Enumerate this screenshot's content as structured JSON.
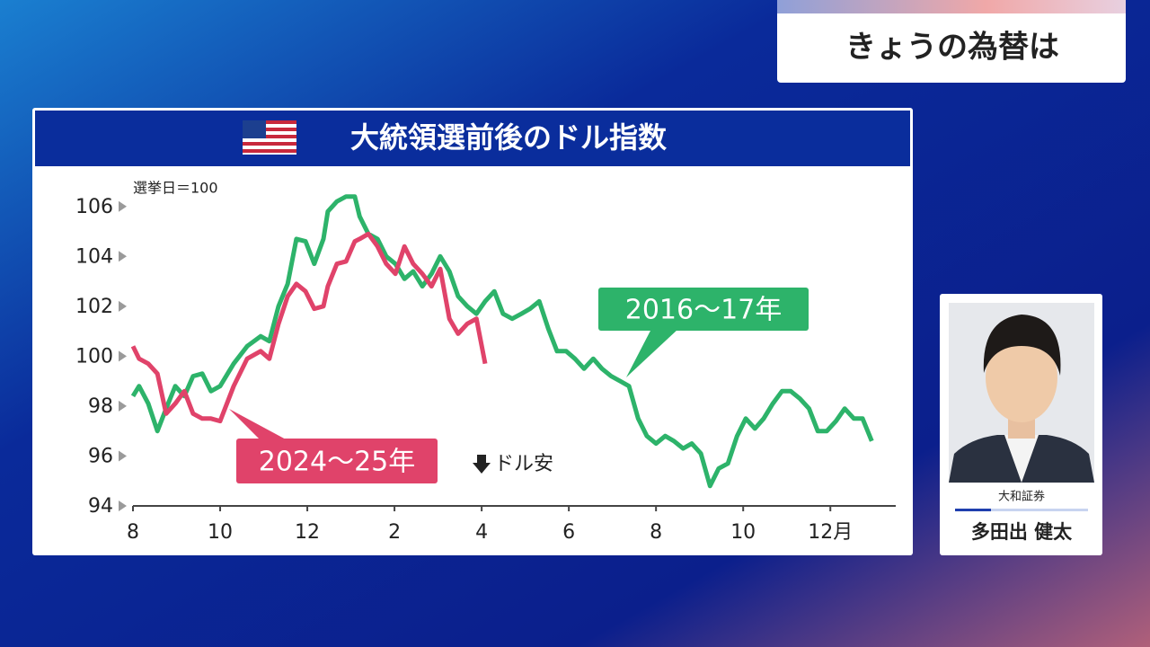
{
  "header": {
    "title": "きょうの為替は"
  },
  "chart_data": {
    "type": "line",
    "title": "大統領選前後のドル指数",
    "y_label": "選挙日＝100",
    "annotation": "ドル安",
    "x": [
      0,
      0.14,
      0.35,
      0.56,
      0.76,
      0.97,
      1.18,
      1.38,
      1.59,
      1.79,
      2.0,
      2.31,
      2.62,
      2.93,
      3.13,
      3.34,
      3.55,
      3.75,
      3.96,
      4.16,
      4.37,
      4.47,
      4.68,
      4.89,
      5.09,
      5.2,
      5.4,
      5.61,
      5.81,
      6.02,
      6.23,
      6.43,
      6.64,
      6.85,
      7.05,
      7.26,
      7.46,
      7.67,
      7.88,
      8.08,
      8.29,
      8.49,
      8.7,
      8.91,
      9.11,
      9.32,
      9.53,
      9.73,
      9.94,
      10.14,
      10.35,
      10.56,
      10.76,
      10.97,
      11.18,
      11.38,
      11.59,
      11.79,
      12.0,
      12.21,
      12.41,
      12.62,
      12.82,
      13.03,
      13.24,
      13.44,
      13.65,
      13.86,
      14.06,
      14.27,
      14.47,
      14.68,
      14.89,
      15.09,
      15.3,
      15.51,
      15.71,
      15.92,
      16.13,
      16.33,
      16.54,
      16.74,
      16.95
    ],
    "series": [
      {
        "name": "2016〜17年",
        "color": "#2db36a",
        "values": [
          98.4,
          98.8,
          98.1,
          97.0,
          97.9,
          98.8,
          98.4,
          99.2,
          99.3,
          98.6,
          98.8,
          99.7,
          100.4,
          100.8,
          100.6,
          102.0,
          102.9,
          104.7,
          104.6,
          103.7,
          104.7,
          105.8,
          106.2,
          106.4,
          106.4,
          105.6,
          104.9,
          104.7,
          104.0,
          103.7,
          103.1,
          103.4,
          102.8,
          103.3,
          104.0,
          103.4,
          102.4,
          102.0,
          101.7,
          102.2,
          102.6,
          101.7,
          101.5,
          101.7,
          101.9,
          102.2,
          101.1,
          100.2,
          100.2,
          99.9,
          99.5,
          99.9,
          99.5,
          99.2,
          99.0,
          98.8,
          97.5,
          96.8,
          96.5,
          96.8,
          96.6,
          96.3,
          96.5,
          96.1,
          94.8,
          95.5,
          95.7,
          96.8,
          97.5,
          97.1,
          97.5,
          98.1,
          98.6,
          98.6,
          98.3,
          97.9,
          97.0,
          97.0,
          97.4,
          97.9,
          97.5,
          97.5,
          96.6
        ]
      },
      {
        "name": "2024〜25年",
        "color": "#e0436a",
        "values": [
          100.4,
          99.9,
          99.7,
          99.3,
          97.7,
          98.1,
          98.6,
          97.7,
          97.5,
          97.5,
          97.4,
          98.8,
          99.9,
          100.2,
          99.9,
          101.3,
          102.4,
          102.9,
          102.6,
          101.9,
          102.0,
          102.8,
          103.7,
          103.8,
          104.6,
          104.7,
          104.9,
          104.4,
          103.7,
          103.3,
          104.4,
          103.7,
          103.3,
          102.8,
          103.5,
          101.5,
          100.9,
          101.3,
          101.5,
          99.7,
          null,
          null,
          null,
          null,
          null,
          null,
          null,
          null,
          null,
          null,
          null,
          null,
          null,
          null,
          null,
          null,
          null,
          null,
          null,
          null,
          null,
          null,
          null,
          null,
          null,
          null,
          null,
          null,
          null,
          null,
          null,
          null,
          null,
          null,
          null,
          null,
          null,
          null,
          null,
          null,
          null,
          null,
          null
        ]
      }
    ],
    "xlim": [
      0,
      17.5
    ],
    "ylim": [
      94,
      107
    ],
    "xticks": [
      {
        "value": 0,
        "label": "8"
      },
      {
        "value": 2,
        "label": "10"
      },
      {
        "value": 4,
        "label": "12"
      },
      {
        "value": 6,
        "label": "2"
      },
      {
        "value": 8,
        "label": "4"
      },
      {
        "value": 10,
        "label": "6"
      },
      {
        "value": 12,
        "label": "8"
      },
      {
        "value": 14,
        "label": "10"
      },
      {
        "value": 16,
        "label": "12月"
      }
    ],
    "yticks": [
      94,
      96,
      98,
      100,
      102,
      104,
      106
    ]
  },
  "guest": {
    "company": "大和証券",
    "name": "多田出 健太"
  }
}
